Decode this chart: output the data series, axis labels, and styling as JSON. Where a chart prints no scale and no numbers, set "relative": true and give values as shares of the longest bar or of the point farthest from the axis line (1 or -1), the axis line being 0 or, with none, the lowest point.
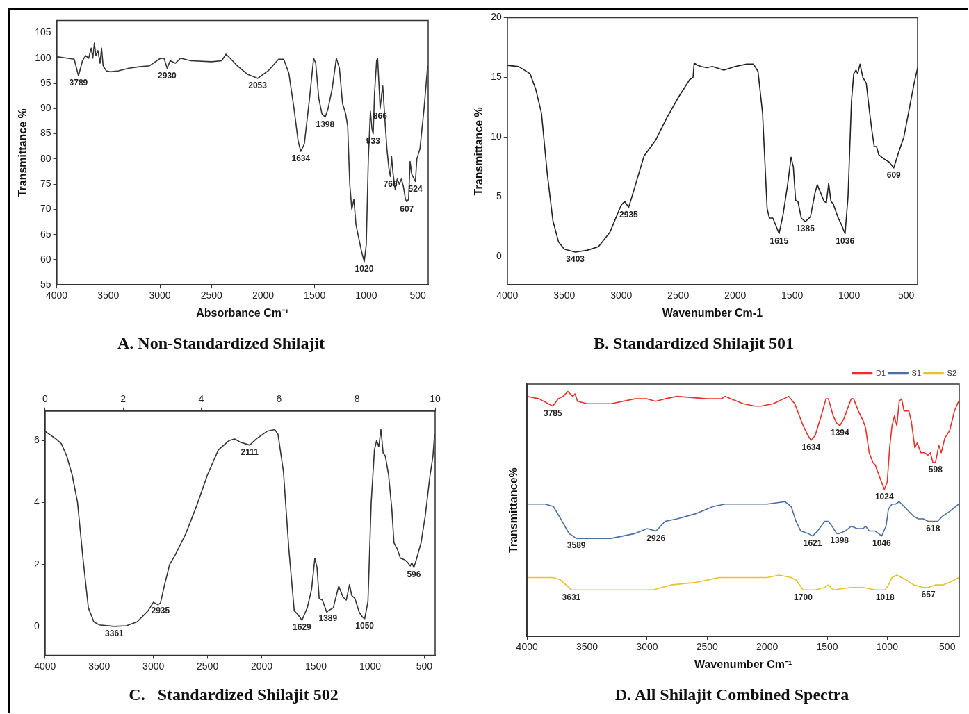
{
  "chart_data": [
    {
      "type": "line",
      "title": "A. Non-Standardized Shilajit",
      "xlabel": "Absorbance Cm⁻¹",
      "ylabel": "Transmittance %",
      "xlim": [
        4000,
        400
      ],
      "xticks": [
        4000,
        3500,
        3000,
        2500,
        2000,
        1500,
        1000,
        500
      ],
      "ylim": [
        55,
        107.5
      ],
      "yticks": [
        55,
        60,
        65,
        70,
        75,
        80,
        85,
        90,
        95,
        100,
        105
      ],
      "grid": false,
      "legend": false,
      "marker": "none",
      "line_style": "solid",
      "x": [
        4000,
        3900,
        3830,
        3789,
        3750,
        3720,
        3690,
        3665,
        3650,
        3635,
        3620,
        3600,
        3580,
        3565,
        3550,
        3520,
        3480,
        3400,
        3300,
        3200,
        3100,
        3000,
        2960,
        2930,
        2900,
        2850,
        2800,
        2700,
        2500,
        2400,
        2360,
        2320,
        2250,
        2150,
        2053,
        1950,
        1850,
        1800,
        1750,
        1700,
        1660,
        1634,
        1600,
        1550,
        1510,
        1490,
        1460,
        1430,
        1398,
        1370,
        1330,
        1290,
        1260,
        1230,
        1200,
        1180,
        1160,
        1140,
        1120,
        1100,
        1070,
        1050,
        1020,
        1000,
        980,
        960,
        945,
        933,
        920,
        900,
        890,
        875,
        866,
        850,
        840,
        820,
        800,
        780,
        766,
        755,
        740,
        720,
        700,
        680,
        660,
        640,
        620,
        607,
        590,
        575,
        560,
        524,
        510,
        480,
        440,
        405
      ],
      "series": [
        {
          "color": "#333333",
          "values": [
            100.3,
            100,
            99.8,
            96.5,
            99.5,
            100.5,
            100,
            102,
            100,
            103,
            100.5,
            101.5,
            99,
            102,
            98.5,
            97.5,
            97.3,
            97.5,
            98,
            98.3,
            98.5,
            99.9,
            100,
            98,
            99.5,
            99,
            100,
            99.5,
            99.3,
            99.5,
            100.8,
            100,
            98.5,
            96.8,
            96,
            97.5,
            99.8,
            99.8,
            97,
            90,
            83.5,
            81.5,
            83,
            92,
            100,
            99,
            92,
            89,
            88.3,
            90,
            94,
            100,
            98,
            91,
            89,
            86.5,
            75,
            70,
            72,
            67,
            64,
            62,
            59.6,
            63,
            80,
            89.5,
            86,
            85,
            93,
            99.5,
            100,
            94,
            90,
            93,
            94.5,
            88,
            82,
            78,
            76.5,
            80.5,
            77,
            74,
            76,
            75,
            76,
            74.5,
            72,
            71.5,
            72,
            79.5,
            77,
            75.5,
            80,
            82,
            90,
            98.5
          ]
        }
      ],
      "annotations": [
        {
          "text": "3789",
          "x": 3789,
          "y": 96.5
        },
        {
          "text": "2930",
          "x": 2930,
          "y": 98
        },
        {
          "text": "2053",
          "x": 2053,
          "y": 96
        },
        {
          "text": "1634",
          "x": 1634,
          "y": 81.5
        },
        {
          "text": "1398",
          "x": 1398,
          "y": 88.3
        },
        {
          "text": "1020",
          "x": 1020,
          "y": 59.6
        },
        {
          "text": "933",
          "x": 933,
          "y": 85
        },
        {
          "text": "866",
          "x": 866,
          "y": 90
        },
        {
          "text": "766",
          "x": 766,
          "y": 76.5
        },
        {
          "text": "607",
          "x": 607,
          "y": 71.5
        },
        {
          "text": "524",
          "x": 524,
          "y": 75.5
        }
      ]
    },
    {
      "type": "line",
      "title": "B. Standardized Shilajit 501",
      "xlabel": "Wavenumber Cm-1",
      "ylabel": "Transmittance %",
      "xlim": [
        4000,
        400
      ],
      "xticks": [
        4000,
        3500,
        3000,
        2500,
        2000,
        1500,
        1000,
        500
      ],
      "ylim": [
        -2.4,
        20
      ],
      "yticks": [
        0,
        5,
        10,
        15,
        20
      ],
      "grid": false,
      "legend": false,
      "marker": "none",
      "line_style": "solid",
      "x": [
        4000,
        3900,
        3800,
        3750,
        3700,
        3650,
        3600,
        3550,
        3500,
        3403,
        3300,
        3200,
        3100,
        3000,
        2970,
        2935,
        2900,
        2850,
        2800,
        2700,
        2600,
        2500,
        2400,
        2370,
        2360,
        2330,
        2300,
        2250,
        2200,
        2100,
        2000,
        1900,
        1840,
        1800,
        1760,
        1720,
        1700,
        1670,
        1640,
        1615,
        1580,
        1540,
        1510,
        1490,
        1470,
        1450,
        1420,
        1385,
        1340,
        1300,
        1280,
        1250,
        1220,
        1200,
        1180,
        1160,
        1140,
        1100,
        1070,
        1036,
        1010,
        980,
        960,
        940,
        925,
        905,
        880,
        850,
        820,
        800,
        780,
        760,
        740,
        700,
        650,
        609,
        570,
        520,
        480,
        430,
        400
      ],
      "series": [
        {
          "color": "#222222",
          "values": [
            16,
            15.9,
            15.3,
            14,
            12,
            7,
            3,
            1.2,
            0.6,
            0.35,
            0.5,
            0.8,
            2,
            4.3,
            4.6,
            4.1,
            5.2,
            6.8,
            8.4,
            9.7,
            11.6,
            13.3,
            14.8,
            15,
            16.2,
            16,
            15.9,
            15.8,
            15.9,
            15.6,
            15.9,
            16.1,
            16.1,
            15.5,
            12,
            4,
            3.2,
            3.2,
            2.5,
            1.9,
            3.5,
            6,
            8.3,
            7.5,
            4.7,
            4.6,
            3.2,
            2.9,
            3.3,
            5.3,
            6,
            5.3,
            4.6,
            4.5,
            6.1,
            4.6,
            4.4,
            3.3,
            2.7,
            1.9,
            5,
            13,
            15.3,
            15.6,
            15.3,
            16.1,
            15,
            14.5,
            12,
            10.5,
            9.2,
            9.2,
            8.5,
            8.2,
            7.9,
            7.4,
            8.6,
            10,
            12,
            14.5,
            15.8
          ]
        }
      ],
      "annotations": [
        {
          "text": "3403",
          "x": 3403,
          "y": 0.35
        },
        {
          "text": "2935",
          "x": 2935,
          "y": 4.1
        },
        {
          "text": "1615",
          "x": 1615,
          "y": 1.9
        },
        {
          "text": "1385",
          "x": 1385,
          "y": 2.9
        },
        {
          "text": "1036",
          "x": 1036,
          "y": 1.9
        },
        {
          "text": "609",
          "x": 609,
          "y": 7.4
        }
      ]
    },
    {
      "type": "line",
      "title": "C.   Standardized Shilajit 502",
      "xlim": [
        4000,
        400
      ],
      "xticks": [
        4000,
        3500,
        3000,
        2500,
        2000,
        1500,
        1000,
        500
      ],
      "x2lim": [
        0,
        10
      ],
      "x2ticks": [
        0,
        2,
        4,
        6,
        8,
        10
      ],
      "ylim": [
        -0.93,
        6.95
      ],
      "yticks": [
        0,
        2,
        4,
        6
      ],
      "grid": false,
      "legend": false,
      "marker": "none",
      "line_style": "solid",
      "x": [
        4000,
        3900,
        3850,
        3800,
        3750,
        3700,
        3650,
        3600,
        3550,
        3500,
        3361,
        3250,
        3150,
        3050,
        3000,
        2960,
        2935,
        2900,
        2850,
        2800,
        2700,
        2600,
        2500,
        2400,
        2300,
        2250,
        2200,
        2111,
        2050,
        1950,
        1880,
        1850,
        1800,
        1750,
        1700,
        1670,
        1629,
        1580,
        1540,
        1510,
        1490,
        1470,
        1440,
        1400,
        1389,
        1340,
        1290,
        1250,
        1220,
        1190,
        1170,
        1140,
        1100,
        1070,
        1050,
        1020,
        990,
        960,
        940,
        920,
        900,
        880,
        860,
        830,
        800,
        780,
        750,
        720,
        680,
        650,
        630,
        615,
        596,
        570,
        530,
        490,
        450,
        420,
        405
      ],
      "series": [
        {
          "color": "#333333",
          "values": [
            6.3,
            6.05,
            5.9,
            5.5,
            4.9,
            4,
            2.2,
            0.6,
            0.15,
            0.05,
            0,
            0.02,
            0.15,
            0.5,
            0.78,
            0.7,
            0.75,
            1.3,
            2,
            2.3,
            3,
            3.9,
            4.9,
            5.7,
            6,
            6.05,
            5.95,
            5.85,
            6.05,
            6.3,
            6.35,
            6.2,
            5,
            2.5,
            0.5,
            0.4,
            0.2,
            0.6,
            1.2,
            2.2,
            1.9,
            0.9,
            0.85,
            0.45,
            0.5,
            0.6,
            1.3,
            0.95,
            0.85,
            1.35,
            1,
            0.9,
            0.45,
            0.3,
            0.25,
            0.8,
            4,
            5.7,
            6,
            5.8,
            6.35,
            5.6,
            5.5,
            4.9,
            3.8,
            2.7,
            2.5,
            2.2,
            2.15,
            2.05,
            1.95,
            2.05,
            1.9,
            2.2,
            2.7,
            3.6,
            4.8,
            5.5,
            6.2
          ]
        }
      ],
      "annotations": [
        {
          "text": "3361",
          "x": 3361,
          "y": 0
        },
        {
          "text": "2935",
          "x": 2935,
          "y": 0.75
        },
        {
          "text": "2111",
          "x": 2111,
          "y": 5.85
        },
        {
          "text": "1629",
          "x": 1629,
          "y": 0.2
        },
        {
          "text": "1389",
          "x": 1389,
          "y": 0.5
        },
        {
          "text": "1050",
          "x": 1050,
          "y": 0.25
        },
        {
          "text": "596",
          "x": 596,
          "y": 1.9
        }
      ]
    },
    {
      "type": "line",
      "title": "D. All Shilajit Combined Spectra",
      "xlabel": "Wavenumber Cm⁻¹",
      "ylabel": "Transmittance%",
      "relative": true,
      "tick_labels": "x",
      "xlim": [
        4000,
        400
      ],
      "xticks": [
        4000,
        3500,
        3000,
        2500,
        2000,
        1500,
        1000,
        500
      ],
      "grid": false,
      "legend": "top right",
      "marker": "none",
      "line_style": "solid",
      "series": [
        {
          "name": "D1",
          "color": "#e8302a",
          "x": [
            4000,
            3900,
            3785,
            3740,
            3700,
            3660,
            3620,
            3600,
            3580,
            3500,
            3300,
            3100,
            3000,
            2930,
            2850,
            2750,
            2500,
            2380,
            2350,
            2300,
            2200,
            2100,
            2050,
            1950,
            1820,
            1770,
            1700,
            1660,
            1634,
            1600,
            1550,
            1510,
            1490,
            1450,
            1420,
            1394,
            1360,
            1300,
            1280,
            1240,
            1200,
            1180,
            1150,
            1120,
            1100,
            1070,
            1040,
            1024,
            1000,
            980,
            960,
            940,
            920,
            900,
            880,
            860,
            840,
            820,
            800,
            770,
            750,
            720,
            690,
            660,
            640,
            620,
            598,
            570,
            550,
            520,
            480,
            440,
            405
          ],
          "values": [
            0.98,
            0.97,
            0.94,
            0.97,
            0.98,
            1,
            0.98,
            0.99,
            0.96,
            0.95,
            0.95,
            0.97,
            0.97,
            0.96,
            0.97,
            0.98,
            0.97,
            0.97,
            0.98,
            0.97,
            0.95,
            0.94,
            0.94,
            0.95,
            0.98,
            0.95,
            0.86,
            0.82,
            0.8,
            0.82,
            0.9,
            0.97,
            0.97,
            0.9,
            0.87,
            0.86,
            0.89,
            0.97,
            0.97,
            0.92,
            0.88,
            0.85,
            0.75,
            0.71,
            0.7,
            0.66,
            0.62,
            0.6,
            0.63,
            0.77,
            0.86,
            0.9,
            0.86,
            0.96,
            0.97,
            0.92,
            0.92,
            0.92,
            0.88,
            0.77,
            0.79,
            0.75,
            0.75,
            0.74,
            0.75,
            0.71,
            0.71,
            0.78,
            0.75,
            0.81,
            0.84,
            0.92,
            0.96
          ]
        },
        {
          "name": "S1",
          "color": "#4a6fa5",
          "x": [
            4000,
            3850,
            3780,
            3720,
            3650,
            3589,
            3500,
            3400,
            3300,
            3200,
            3100,
            3000,
            2926,
            2850,
            2750,
            2600,
            2450,
            2350,
            2200,
            2000,
            1850,
            1800,
            1760,
            1720,
            1660,
            1621,
            1580,
            1520,
            1490,
            1460,
            1420,
            1398,
            1350,
            1300,
            1250,
            1200,
            1180,
            1150,
            1100,
            1046,
            1010,
            990,
            960,
            930,
            900,
            860,
            820,
            780,
            740,
            700,
            660,
            618,
            580,
            540,
            480,
            430,
            405
          ],
          "values": [
            0.54,
            0.54,
            0.53,
            0.48,
            0.42,
            0.4,
            0.4,
            0.4,
            0.4,
            0.41,
            0.42,
            0.44,
            0.43,
            0.47,
            0.48,
            0.5,
            0.53,
            0.54,
            0.54,
            0.54,
            0.55,
            0.53,
            0.47,
            0.43,
            0.42,
            0.41,
            0.43,
            0.47,
            0.47,
            0.45,
            0.42,
            0.42,
            0.43,
            0.45,
            0.44,
            0.44,
            0.45,
            0.43,
            0.43,
            0.41,
            0.45,
            0.52,
            0.54,
            0.54,
            0.55,
            0.53,
            0.51,
            0.49,
            0.48,
            0.48,
            0.47,
            0.47,
            0.47,
            0.49,
            0.51,
            0.53,
            0.54
          ]
        },
        {
          "name": "S2",
          "color": "#e8c22a",
          "x": [
            4000,
            3780,
            3720,
            3631,
            3500,
            3300,
            3100,
            2950,
            2800,
            2600,
            2400,
            2200,
            2000,
            1900,
            1800,
            1760,
            1700,
            1600,
            1520,
            1490,
            1450,
            1300,
            1200,
            1100,
            1018,
            990,
            960,
            920,
            880,
            840,
            780,
            700,
            657,
            600,
            540,
            480,
            405
          ],
          "values": [
            0.24,
            0.24,
            0.23,
            0.19,
            0.19,
            0.19,
            0.19,
            0.19,
            0.21,
            0.22,
            0.24,
            0.24,
            0.24,
            0.25,
            0.24,
            0.23,
            0.19,
            0.19,
            0.2,
            0.21,
            0.19,
            0.2,
            0.2,
            0.19,
            0.19,
            0.21,
            0.24,
            0.25,
            0.24,
            0.23,
            0.21,
            0.2,
            0.2,
            0.21,
            0.21,
            0.22,
            0.24
          ]
        }
      ],
      "annotations": [
        {
          "text": "3785",
          "x": 3785,
          "y": 0.94
        },
        {
          "text": "1634",
          "x": 1634,
          "y": 0.8
        },
        {
          "text": "1394",
          "x": 1394,
          "y": 0.86
        },
        {
          "text": "1024",
          "x": 1024,
          "y": 0.6
        },
        {
          "text": "598",
          "x": 598,
          "y": 0.71
        },
        {
          "text": "3589",
          "x": 3589,
          "y": 0.4
        },
        {
          "text": "2926",
          "x": 2926,
          "y": 0.43
        },
        {
          "text": "1621",
          "x": 1621,
          "y": 0.41
        },
        {
          "text": "1398",
          "x": 1398,
          "y": 0.42
        },
        {
          "text": "1046",
          "x": 1046,
          "y": 0.41
        },
        {
          "text": "618",
          "x": 618,
          "y": 0.47
        },
        {
          "text": "3631",
          "x": 3631,
          "y": 0.19
        },
        {
          "text": "1700",
          "x": 1700,
          "y": 0.19
        },
        {
          "text": "1018",
          "x": 1018,
          "y": 0.19
        },
        {
          "text": "657",
          "x": 657,
          "y": 0.2
        }
      ]
    }
  ]
}
